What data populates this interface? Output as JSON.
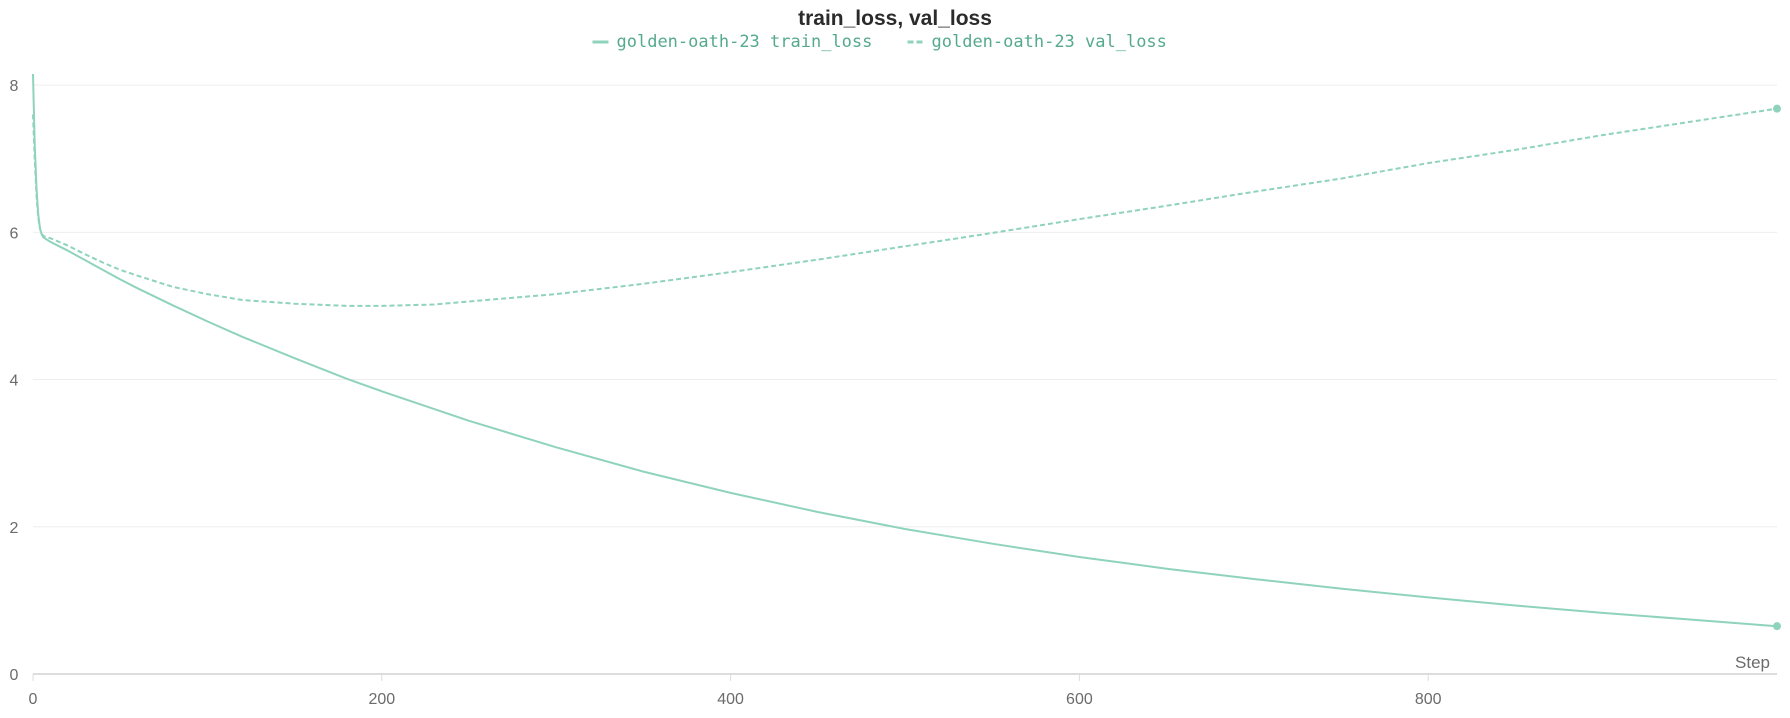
{
  "chart_data": {
    "type": "line",
    "title": "train_loss, val_loss",
    "xlabel": "Step",
    "ylabel": "",
    "xlim": [
      0,
      1000
    ],
    "ylim": [
      0,
      8.3
    ],
    "x_ticks": [
      0,
      200,
      400,
      600,
      800
    ],
    "y_ticks": [
      0,
      2,
      4,
      6,
      8
    ],
    "grid": true,
    "legend_position": "top-center",
    "colors": {
      "series": "#8fd3bd",
      "legend_text": "#55a98e",
      "grid": "#eeeeee",
      "axis": "#dddddd"
    },
    "series": [
      {
        "name": "golden-oath-23 train_loss",
        "style": "solid",
        "x": [
          0,
          1,
          2,
          3,
          4,
          5,
          6,
          8,
          10,
          15,
          20,
          30,
          40,
          50,
          60,
          80,
          100,
          120,
          150,
          180,
          200,
          250,
          300,
          350,
          400,
          450,
          500,
          550,
          600,
          650,
          700,
          750,
          800,
          850,
          900,
          950,
          1000
        ],
        "y": [
          8.15,
          7.2,
          6.6,
          6.25,
          6.05,
          5.97,
          5.93,
          5.9,
          5.87,
          5.81,
          5.75,
          5.62,
          5.49,
          5.36,
          5.24,
          5.01,
          4.79,
          4.58,
          4.29,
          4.01,
          3.84,
          3.44,
          3.08,
          2.75,
          2.46,
          2.2,
          1.97,
          1.77,
          1.59,
          1.43,
          1.29,
          1.16,
          1.04,
          0.93,
          0.83,
          0.74,
          0.65
        ]
      },
      {
        "name": "golden-oath-23 val_loss",
        "style": "dashed",
        "x": [
          0,
          1,
          2,
          3,
          4,
          5,
          6,
          8,
          10,
          20,
          30,
          40,
          50,
          60,
          80,
          100,
          120,
          150,
          180,
          200,
          230,
          260,
          300,
          350,
          400,
          450,
          500,
          550,
          600,
          650,
          700,
          750,
          800,
          850,
          900,
          950,
          1000
        ],
        "y": [
          7.6,
          7.0,
          6.5,
          6.2,
          6.05,
          5.98,
          5.95,
          5.93,
          5.92,
          5.82,
          5.7,
          5.59,
          5.49,
          5.41,
          5.26,
          5.16,
          5.08,
          5.03,
          5.0,
          5.0,
          5.02,
          5.08,
          5.16,
          5.3,
          5.46,
          5.63,
          5.81,
          5.99,
          6.18,
          6.36,
          6.55,
          6.73,
          6.94,
          7.12,
          7.32,
          7.5,
          7.68
        ]
      }
    ]
  }
}
